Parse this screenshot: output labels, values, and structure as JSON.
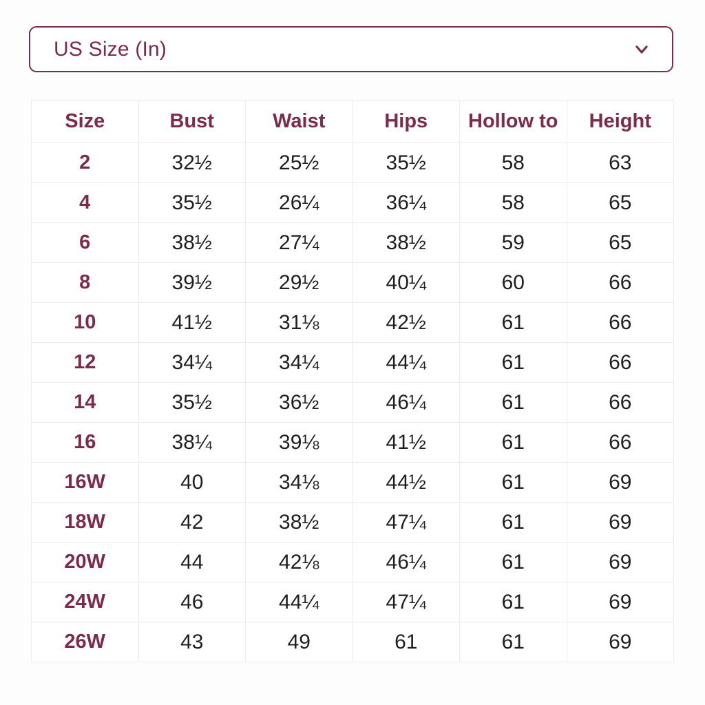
{
  "dropdown": {
    "label": "US Size (In)",
    "chevron_icon": "chevron-down"
  },
  "colors": {
    "accent": "#7d2b4b",
    "body_text": "#1f1f1f",
    "grid_line": "#ebebeb",
    "background": "#ffffff"
  },
  "table": {
    "columns": [
      "Size",
      "Bust",
      "Waist",
      "Hips",
      "Hollow to",
      "Height"
    ],
    "rows": [
      [
        "2",
        "32½",
        "25½",
        "35½",
        "58",
        "63"
      ],
      [
        "4",
        "35½",
        "26¼",
        "36¼",
        "58",
        "65"
      ],
      [
        "6",
        "38½",
        "27¼",
        "38½",
        "59",
        "65"
      ],
      [
        "8",
        "39½",
        "29½",
        "40¼",
        "60",
        "66"
      ],
      [
        "10",
        "41½",
        "31⅛",
        "42½",
        "61",
        "66"
      ],
      [
        "12",
        "34¼",
        "34¼",
        "44¼",
        "61",
        "66"
      ],
      [
        "14",
        "35½",
        "36½",
        "46¼",
        "61",
        "66"
      ],
      [
        "16",
        "38¼",
        "39⅛",
        "41½",
        "61",
        "66"
      ],
      [
        "16W",
        "40",
        "34⅛",
        "44½",
        "61",
        "69"
      ],
      [
        "18W",
        "42",
        "38½",
        "47¼",
        "61",
        "69"
      ],
      [
        "20W",
        "44",
        "42⅛",
        "46¼",
        "61",
        "69"
      ],
      [
        "24W",
        "46",
        "44¼",
        "47¼",
        "61",
        "69"
      ],
      [
        "26W",
        "43",
        "49",
        "61",
        "61",
        "69"
      ]
    ]
  }
}
